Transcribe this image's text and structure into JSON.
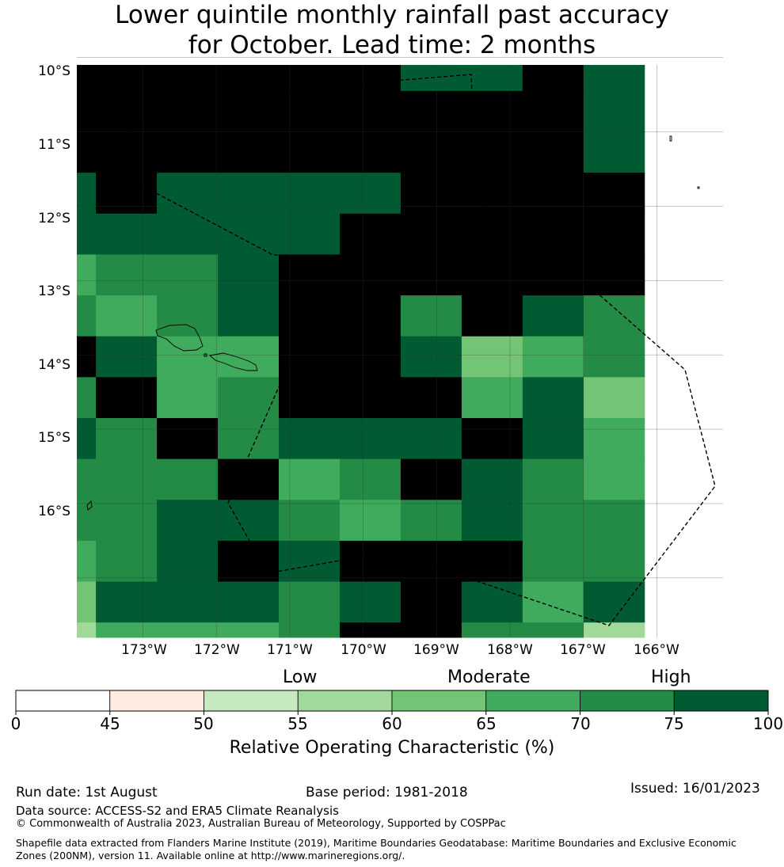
{
  "title": "Lower quintile monthly rainfall past accuracy\nfor October. Lead time: 2 months",
  "map": {
    "lat_labels": [
      "10°S",
      "11°S",
      "12°S",
      "13°S",
      "14°S",
      "15°S",
      "16°S"
    ],
    "lon_labels": [
      "173°W",
      "172°W",
      "171°W",
      "170°W",
      "169°W",
      "168°W",
      "167°W",
      "166°W"
    ],
    "lon_range": [
      -173.9,
      -165.1
    ],
    "lat_range": [
      -17.8,
      -10.1
    ],
    "cell_width_deg": 0.83,
    "cell_height_deg": 0.55,
    "col_offset_deg": 0.57,
    "row_offset_deg": 0.2,
    "grid": [
      [
        8,
        8,
        8,
        8,
        8,
        8,
        7,
        7,
        8,
        7
      ],
      [
        8,
        8,
        8,
        8,
        8,
        8,
        8,
        8,
        8,
        7
      ],
      [
        8,
        8,
        8,
        8,
        8,
        8,
        8,
        8,
        8,
        7
      ],
      [
        7,
        8,
        7,
        7,
        7,
        7,
        8,
        8,
        8,
        8
      ],
      [
        7,
        7,
        7,
        7,
        7,
        8,
        8,
        8,
        8,
        8
      ],
      [
        5,
        6,
        6,
        7,
        8,
        8,
        8,
        8,
        8,
        8
      ],
      [
        6,
        5,
        6,
        7,
        8,
        8,
        6,
        8,
        7,
        6
      ],
      [
        8,
        7,
        5,
        5,
        8,
        8,
        7,
        4,
        5,
        6
      ],
      [
        6,
        8,
        5,
        6,
        8,
        8,
        8,
        5,
        7,
        4
      ],
      [
        7,
        6,
        8,
        6,
        7,
        7,
        7,
        8,
        7,
        5
      ],
      [
        6,
        6,
        6,
        8,
        5,
        6,
        8,
        7,
        6,
        5
      ],
      [
        6,
        6,
        7,
        7,
        6,
        5,
        6,
        7,
        6,
        6
      ],
      [
        5,
        6,
        7,
        8,
        7,
        8,
        8,
        8,
        6,
        6
      ],
      [
        4,
        7,
        7,
        7,
        6,
        7,
        8,
        7,
        5,
        7
      ],
      [
        3,
        5,
        5,
        5,
        6,
        8,
        8,
        6,
        6,
        3
      ]
    ],
    "grid_bottom_row_fraction": 0.85
  },
  "colorbar": {
    "colors": [
      "#ffffff",
      "#ffebe0",
      "#c7e9c0",
      "#a1d99b",
      "#74c476",
      "#41ab5d",
      "#238b45",
      "#005a32"
    ],
    "ticks": [
      "0",
      "45",
      "50",
      "55",
      "60",
      "65",
      "70",
      "75",
      "100"
    ],
    "categories": [
      "Low",
      "Moderate",
      "High"
    ],
    "title": "Relative Operating Characteristic (%)"
  },
  "footer": {
    "run_date": "Run date: 1st August",
    "base_period": "Base period: 1981-2018",
    "issued": "Issued: 16/01/2023",
    "data_source": "Data source: ACCESS-S2 and ERA5 Climate Reanalysis",
    "copyright": "© Commonwealth of Australia 2023, Australian Bureau of Meteorology, Supported by COSPPac",
    "shapefile": "Shapefile data extracted from Flanders Marine Institute (2019), Maritime Boundaries Geodatabase: Maritime Boundaries and Exclusive Economic Zones (200NM), version 11. Available online at http://www.marineregions.org/."
  }
}
